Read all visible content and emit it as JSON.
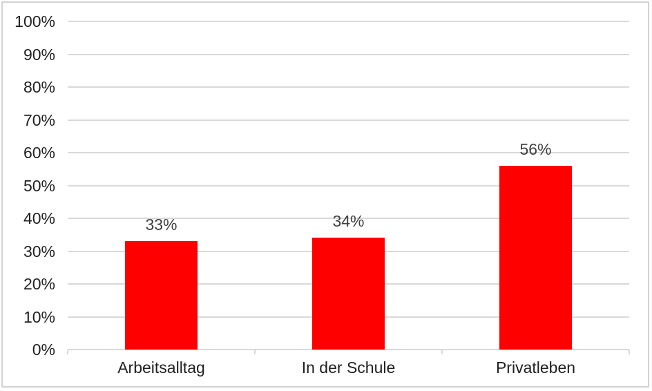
{
  "chart_data": {
    "type": "bar",
    "title": "",
    "xlabel": "",
    "ylabel": "",
    "categories": [
      "Arbeitsalltag",
      "In der Schule",
      "Privatleben"
    ],
    "values": [
      33,
      34,
      56
    ],
    "data_labels": [
      "33%",
      "34%",
      "56%"
    ],
    "ylim": [
      0,
      100
    ],
    "ytick_step": 10,
    "ytick_labels": [
      "0%",
      "10%",
      "20%",
      "30%",
      "40%",
      "50%",
      "60%",
      "70%",
      "80%",
      "90%",
      "100%"
    ],
    "grid": true,
    "legend": "none",
    "colors": {
      "bar": "#ff0000",
      "gridline": "#d9d9d9",
      "axis_line": "#d9d9d9",
      "frame_border": "#d2d2d2",
      "axis_text": "#1f1f1f",
      "data_label_text": "#404040",
      "background": "#ffffff"
    }
  }
}
